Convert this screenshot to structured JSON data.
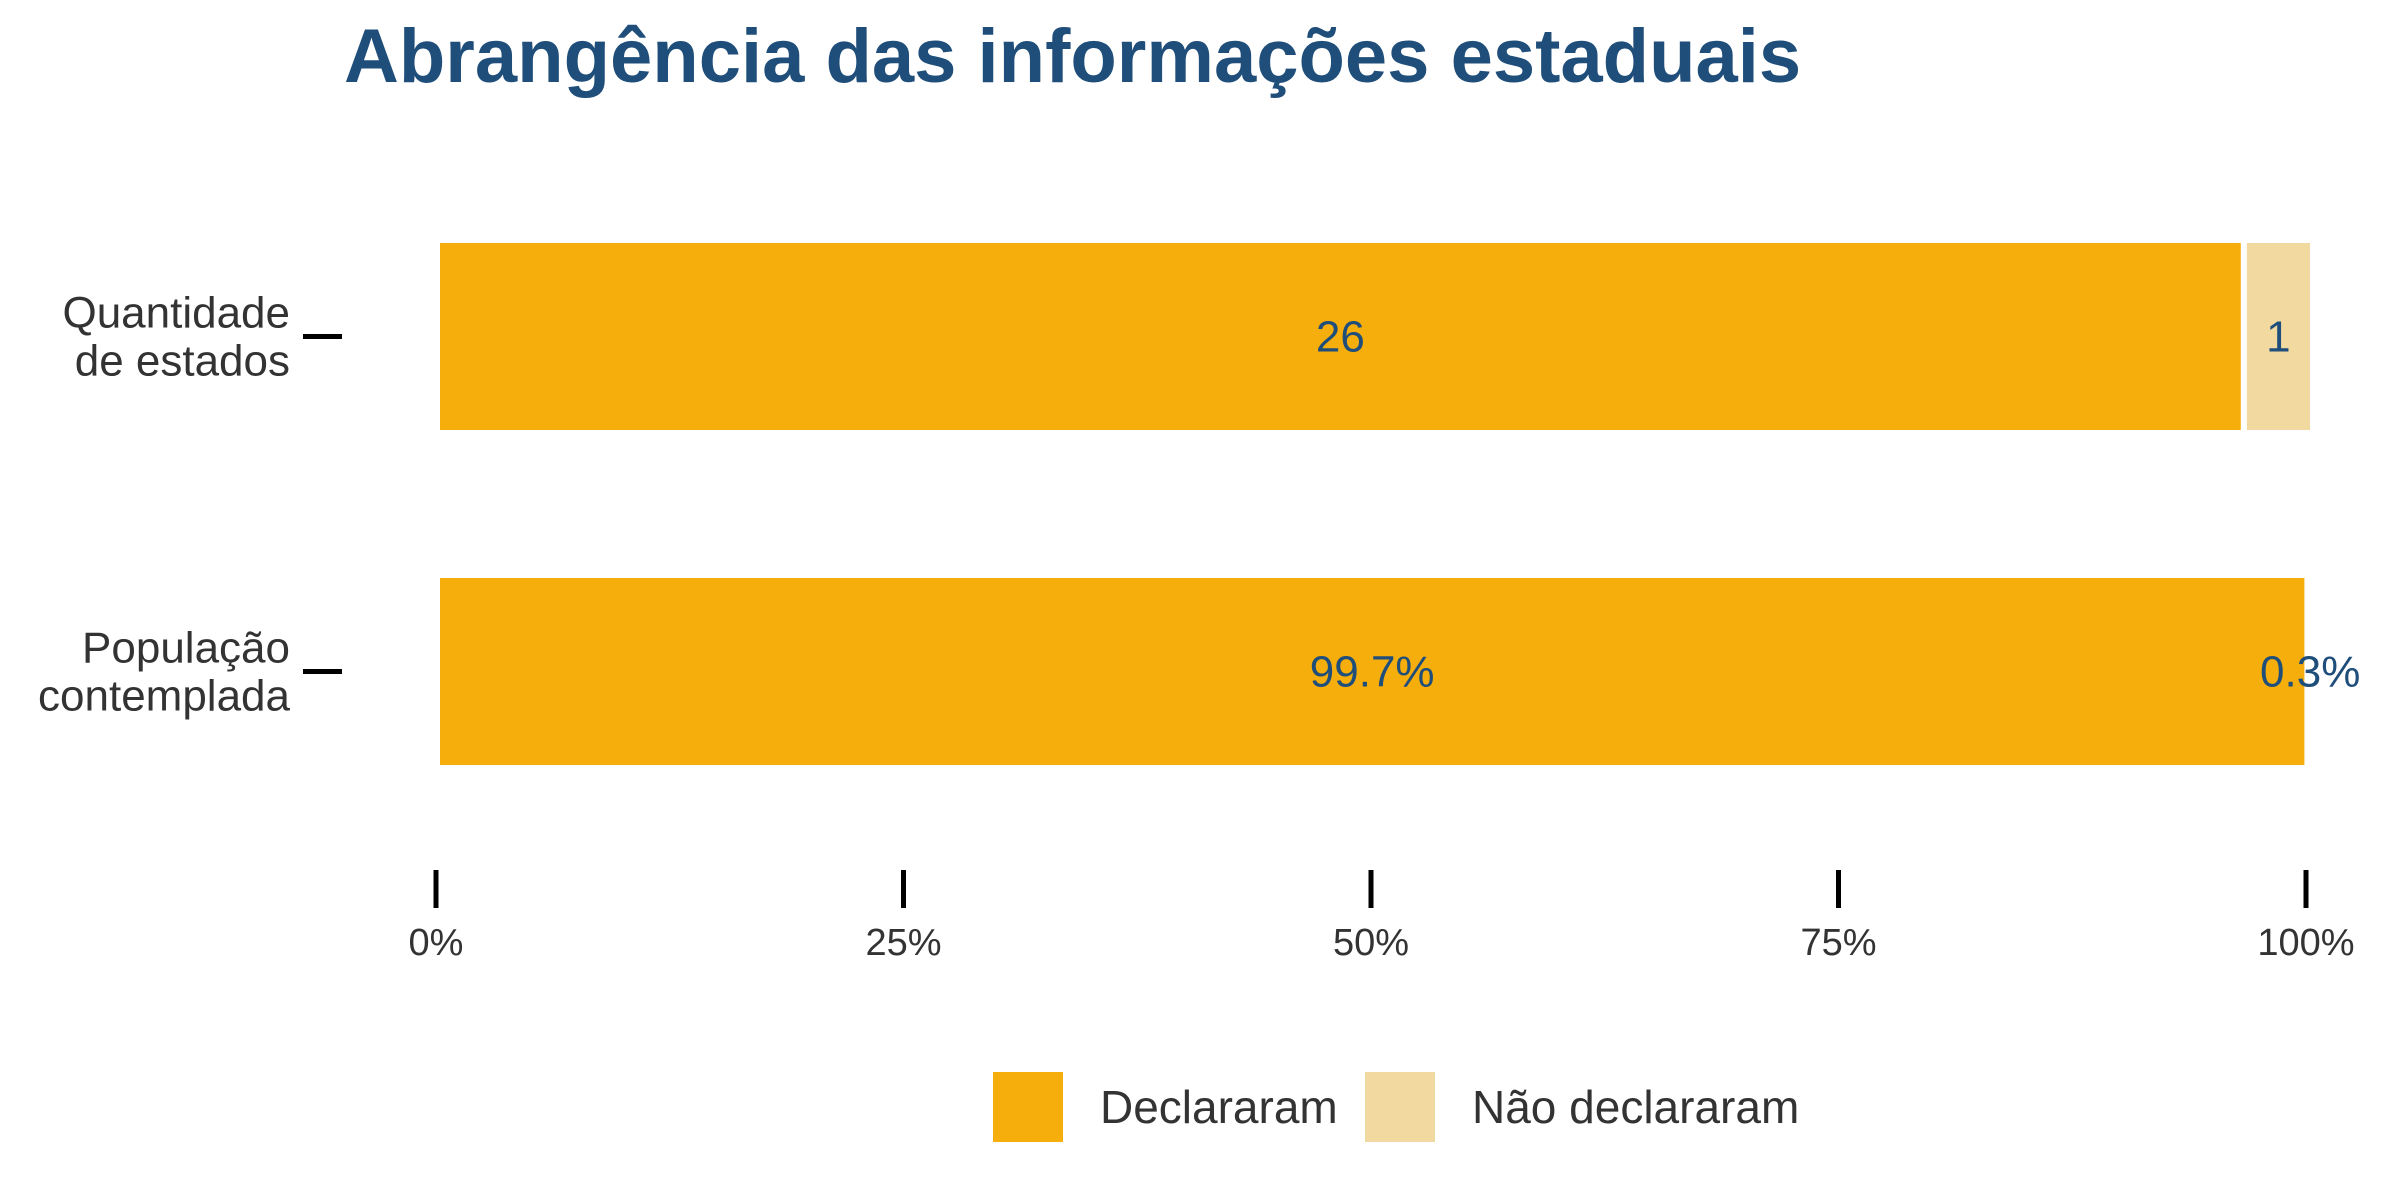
{
  "chart_data": {
    "type": "bar",
    "orientation": "horizontal",
    "stacked": "percent",
    "title": "Abrangência das informações estaduais",
    "xlabel": "",
    "ylabel": "",
    "xlim": [
      0,
      100
    ],
    "categories": [
      [
        "Quantidade",
        "de estados"
      ],
      [
        "População",
        "contemplada"
      ]
    ],
    "series": [
      {
        "name": "Declararam",
        "color": "#F6AE0C",
        "values": [
          96.3,
          99.7
        ],
        "labels": [
          "26",
          "99.7%"
        ]
      },
      {
        "name": "Não declararam",
        "color": "#F2D9A0",
        "values": [
          3.7,
          0.3
        ],
        "labels": [
          "1",
          "0.3%"
        ]
      }
    ],
    "x_ticks": [
      0,
      25,
      50,
      75,
      100
    ],
    "x_tick_labels": [
      "0%",
      "25%",
      "50%",
      "75%",
      "100%"
    ],
    "grid": false,
    "legend_position": "bottom",
    "colors": {
      "title": "#1F4E7A",
      "data_label": "#1F4E7A",
      "axis_tick": "#000000",
      "text": "#333333"
    }
  }
}
